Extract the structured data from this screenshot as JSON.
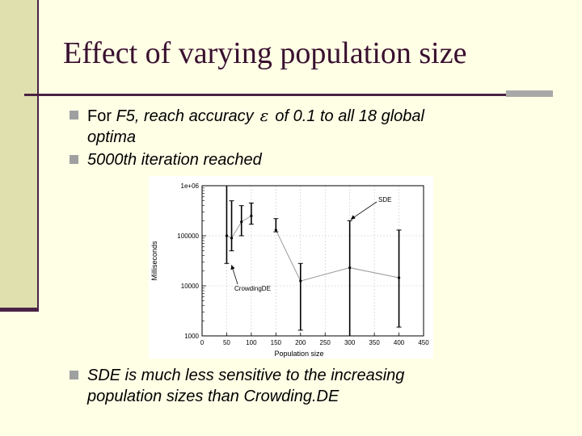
{
  "slide": {
    "title": "Effect of varying population size",
    "bullets": [
      {
        "prefix": "For ",
        "italic": "F5, reach accuracy",
        "symbol": "ε",
        "suffix": "of 0.1 to all 18 global",
        "line2": "optima"
      },
      {
        "text": "5000th iteration reached"
      }
    ],
    "bottom_bullet": {
      "line1": "SDE is much less sensitive to the increasing",
      "line2": "population sizes than Crowding.DE"
    }
  },
  "colors": {
    "background": "#ffffe6",
    "accent": "#4a2244",
    "sidebar": "#dfe0ae",
    "marker": "#9fa0a0"
  },
  "chart_data": {
    "type": "line",
    "xlabel": "Population size",
    "ylabel": "Milliseconds",
    "xlim": [
      0,
      450
    ],
    "ylim": [
      1000,
      1000000
    ],
    "yscale": "log",
    "xticks": [
      0,
      50,
      100,
      150,
      200,
      250,
      300,
      350,
      400,
      450
    ],
    "yticks": [
      {
        "value": 1000,
        "label": "1000"
      },
      {
        "value": 10000,
        "label": "10000"
      },
      {
        "value": 100000,
        "label": "100000"
      },
      {
        "value": 1000000,
        "label": "1e+06"
      }
    ],
    "grid": true,
    "series": [
      {
        "name": "CrowdingDE",
        "points": [
          {
            "x": 50,
            "y": 100000,
            "lo": 28000,
            "hi": 1000000
          },
          {
            "x": 60,
            "y": 90000,
            "lo": 50000,
            "hi": 500000
          },
          {
            "x": 80,
            "y": 190000,
            "lo": 100000,
            "hi": 400000
          },
          {
            "x": 100,
            "y": 250000,
            "lo": 170000,
            "hi": 450000
          }
        ]
      },
      {
        "name": "SDE",
        "points": [
          {
            "x": 150,
            "y": 130000,
            "lo": 120000,
            "hi": 220000
          },
          {
            "x": 200,
            "y": 12500,
            "lo": 1300,
            "hi": 28000
          },
          {
            "x": 300,
            "y": 23000,
            "lo": 1000,
            "hi": 200000
          },
          {
            "x": 400,
            "y": 14500,
            "lo": 1500,
            "hi": 130000
          }
        ]
      }
    ],
    "annotations": [
      {
        "text": "SDE",
        "series": "SDE"
      },
      {
        "text": "CrowdingDE",
        "series": "CrowdingDE"
      }
    ]
  }
}
